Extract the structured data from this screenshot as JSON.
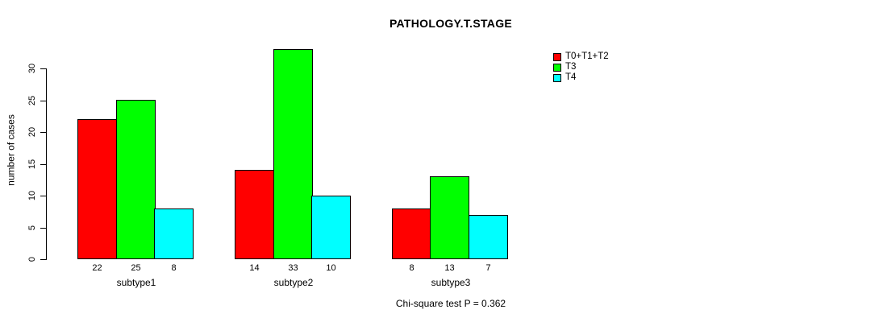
{
  "chart_data": {
    "type": "bar",
    "title": "PATHOLOGY.T.STAGE",
    "xlabel": "",
    "ylabel": "number of cases",
    "categories": [
      "subtype1",
      "subtype2",
      "subtype3"
    ],
    "series": [
      {
        "name": "T0+T1+T2",
        "color": "#ff0000",
        "values": [
          22,
          14,
          8
        ]
      },
      {
        "name": "T3",
        "color": "#00ff00",
        "values": [
          25,
          33,
          13
        ]
      },
      {
        "name": "T4",
        "color": "#00ffff",
        "values": [
          8,
          10,
          7
        ]
      }
    ],
    "value_labels": [
      [
        22,
        25,
        8
      ],
      [
        14,
        33,
        10
      ],
      [
        8,
        13,
        7
      ]
    ],
    "yticks": [
      0,
      5,
      10,
      15,
      20,
      25,
      30
    ],
    "ylim": [
      0,
      33
    ],
    "grid": false,
    "legend_position": "top-right",
    "annotation": "Chi-square test P = 0.362",
    "colors": {
      "bar_border": "#000000",
      "axis": "#000000",
      "text": "#000000",
      "background": "#ffffff"
    }
  }
}
